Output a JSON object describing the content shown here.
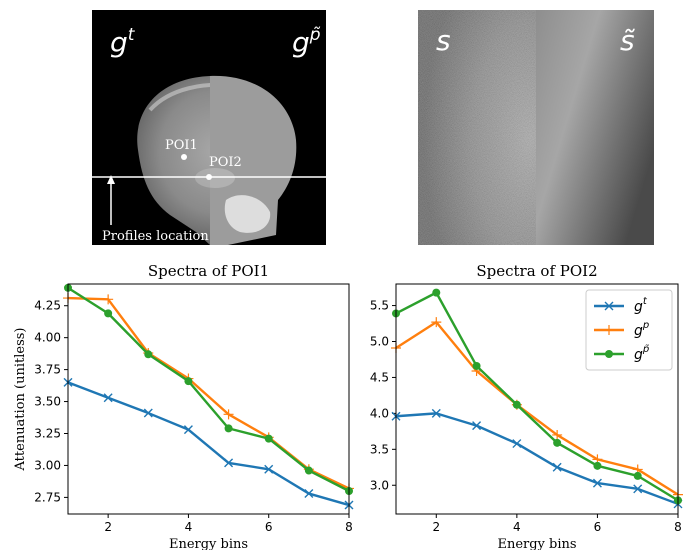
{
  "panels": {
    "ct": {
      "left_label": "g",
      "left_sup": "t",
      "right_label": "g",
      "right_sup": "p̃",
      "poi1": "POI1",
      "poi2": "POI2",
      "profiles_label": "Profiles location"
    },
    "noise": {
      "left_label": "s",
      "right_label": "s̃"
    }
  },
  "colors": {
    "gt": "#1f77b4",
    "gp": "#ff7f0e",
    "gptilde": "#2ca02c"
  },
  "chart_data": [
    {
      "type": "line",
      "title": "Spectra of POI1",
      "xlabel": "Energy bins",
      "ylabel": "Attenuation (unitless)",
      "xlim": [
        1,
        8
      ],
      "ylim": [
        2.62,
        4.42
      ],
      "xticks": [
        "2",
        "4",
        "6",
        "8"
      ],
      "yticks": [
        "2.75",
        "3.00",
        "3.25",
        "3.50",
        "3.75",
        "4.00",
        "4.25"
      ],
      "x": [
        1,
        2,
        3,
        4,
        5,
        6,
        7,
        8
      ],
      "series": [
        {
          "key": "gt",
          "marker": "x",
          "values": [
            3.65,
            3.53,
            3.41,
            3.28,
            3.02,
            2.97,
            2.78,
            2.69
          ]
        },
        {
          "key": "gp",
          "marker": "plus",
          "values": [
            4.31,
            4.3,
            3.88,
            3.68,
            3.4,
            3.22,
            2.97,
            2.82
          ]
        },
        {
          "key": "gptilde",
          "marker": "circle",
          "values": [
            4.39,
            4.19,
            3.87,
            3.66,
            3.29,
            3.21,
            2.96,
            2.8
          ]
        }
      ]
    },
    {
      "type": "line",
      "title": "Spectra of POI2",
      "xlabel": "Energy bins",
      "ylabel": "",
      "xlim": [
        1,
        8
      ],
      "ylim": [
        2.6,
        5.8
      ],
      "xticks": [
        "2",
        "4",
        "6",
        "8"
      ],
      "yticks": [
        "3.0",
        "3.5",
        "4.0",
        "4.5",
        "5.0",
        "5.5"
      ],
      "x": [
        1,
        2,
        3,
        4,
        5,
        6,
        7,
        8
      ],
      "legend": {
        "placement": "top-right",
        "entries": [
          {
            "key": "gt",
            "base": "g",
            "sup": "t"
          },
          {
            "key": "gp",
            "base": "g",
            "sup": "p"
          },
          {
            "key": "gptilde",
            "base": "g",
            "sup": "p̃"
          }
        ]
      },
      "series": [
        {
          "key": "gt",
          "marker": "x",
          "values": [
            3.96,
            4.0,
            3.83,
            3.58,
            3.25,
            3.03,
            2.95,
            2.74
          ]
        },
        {
          "key": "gp",
          "marker": "plus",
          "values": [
            4.91,
            5.27,
            4.59,
            4.12,
            3.7,
            3.36,
            3.22,
            2.87
          ]
        },
        {
          "key": "gptilde",
          "marker": "circle",
          "values": [
            5.39,
            5.68,
            4.66,
            4.12,
            3.59,
            3.27,
            3.13,
            2.79
          ]
        }
      ]
    }
  ]
}
